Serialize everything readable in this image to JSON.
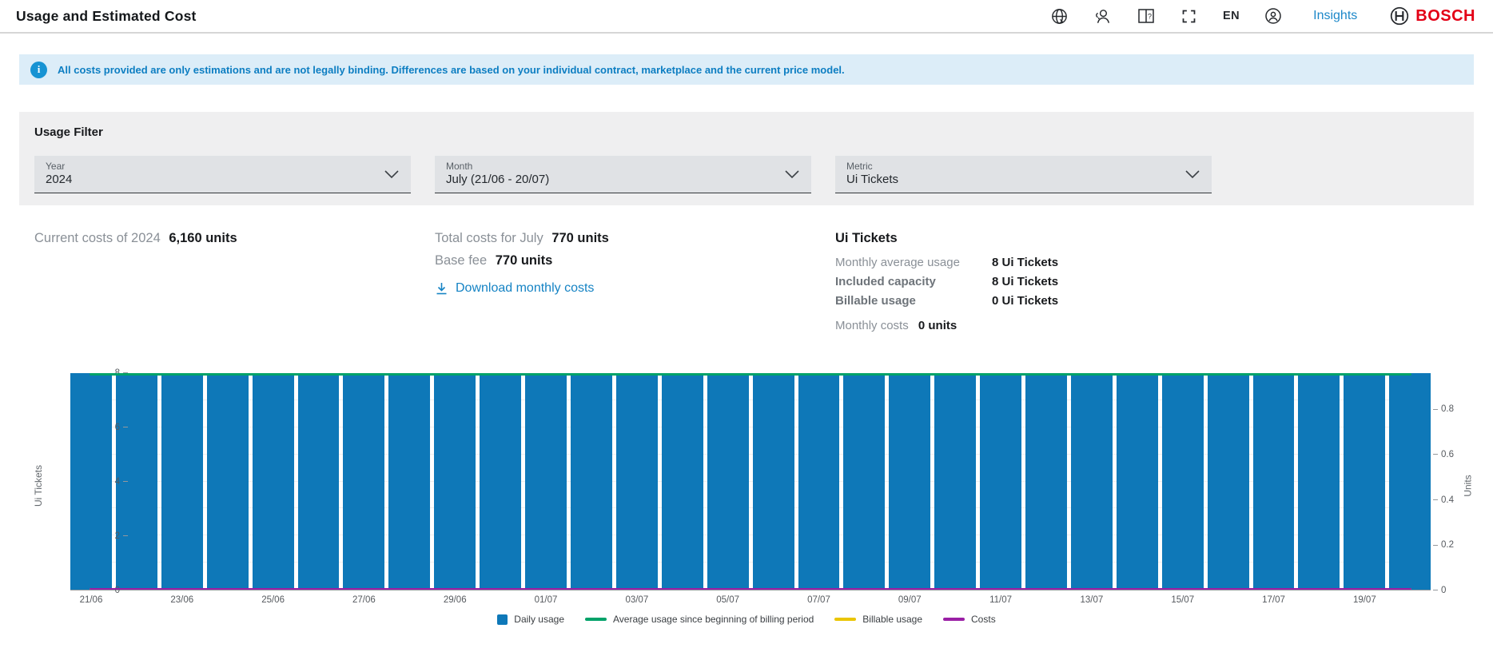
{
  "header": {
    "title": "Usage and Estimated Cost",
    "language": "EN",
    "insights_label": "Insights",
    "brand": "BOSCH"
  },
  "banner": {
    "text": "All costs provided are only estimations and are not legally binding. Differences are based on your individual contract, marketplace and the current price model."
  },
  "filter": {
    "title": "Usage Filter",
    "fields": [
      {
        "label": "Year",
        "value": "2024"
      },
      {
        "label": "Month",
        "value": "July (21/06 - 20/07)"
      },
      {
        "label": "Metric",
        "value": "Ui Tickets"
      }
    ]
  },
  "summary": {
    "current_costs_label": "Current costs of 2024",
    "current_costs_value": "6,160 units",
    "total_costs_label": "Total costs for July",
    "total_costs_value": "770 units",
    "base_fee_label": "Base fee",
    "base_fee_value": "770 units",
    "download_label": "Download monthly costs",
    "metric_panel": {
      "title": "Ui Tickets",
      "rows": [
        {
          "label": "Monthly average usage",
          "value": "8 Ui Tickets"
        },
        {
          "label": "Included capacity",
          "value": "8 Ui Tickets"
        },
        {
          "label": "Billable usage",
          "value": "0 Ui Tickets"
        }
      ],
      "monthly_costs_label": "Monthly costs",
      "monthly_costs_value": "0 units"
    }
  },
  "chart_data": {
    "type": "bar",
    "title": "",
    "xlabel": "",
    "ylabel_left": "Ui Tickets",
    "ylabel_right": "Units",
    "ylim_left": [
      0,
      8
    ],
    "ylim_right": [
      0,
      0.96
    ],
    "left_ticks": [
      0,
      2,
      4,
      6,
      8
    ],
    "right_ticks": [
      0,
      0.2,
      0.4,
      0.6,
      0.8
    ],
    "x_tick_labels": [
      "21/06",
      "23/06",
      "25/06",
      "27/06",
      "29/06",
      "01/07",
      "03/07",
      "05/07",
      "07/07",
      "09/07",
      "11/07",
      "13/07",
      "15/07",
      "17/07",
      "19/07"
    ],
    "days": 30,
    "grid": true,
    "legend_position": "bottom",
    "series": [
      {
        "name": "Daily usage",
        "type": "bar",
        "color": "#0e78b8",
        "values": [
          8,
          8,
          8,
          8,
          8,
          8,
          8,
          8,
          8,
          8,
          8,
          8,
          8,
          8,
          8,
          8,
          8,
          8,
          8,
          8,
          8,
          8,
          8,
          8,
          8,
          8,
          8,
          8,
          8,
          8
        ]
      },
      {
        "name": "Average usage since beginning of billing period",
        "type": "line",
        "color": "#00a269",
        "values": [
          8,
          8,
          8,
          8,
          8,
          8,
          8,
          8,
          8,
          8,
          8,
          8,
          8,
          8,
          8,
          8,
          8,
          8,
          8,
          8,
          8,
          8,
          8,
          8,
          8,
          8,
          8,
          8,
          8,
          8
        ]
      },
      {
        "name": "Billable usage",
        "type": "line",
        "color": "#eac500",
        "values": [
          0,
          0,
          0,
          0,
          0,
          0,
          0,
          0,
          0,
          0,
          0,
          0,
          0,
          0,
          0,
          0,
          0,
          0,
          0,
          0,
          0,
          0,
          0,
          0,
          0,
          0,
          0,
          0,
          0,
          0
        ]
      },
      {
        "name": "Costs",
        "type": "line",
        "color": "#9a1fa5",
        "values": [
          0,
          0,
          0,
          0,
          0,
          0,
          0,
          0,
          0,
          0,
          0,
          0,
          0,
          0,
          0,
          0,
          0,
          0,
          0,
          0,
          0,
          0,
          0,
          0,
          0,
          0,
          0,
          0,
          0,
          0
        ]
      }
    ]
  }
}
